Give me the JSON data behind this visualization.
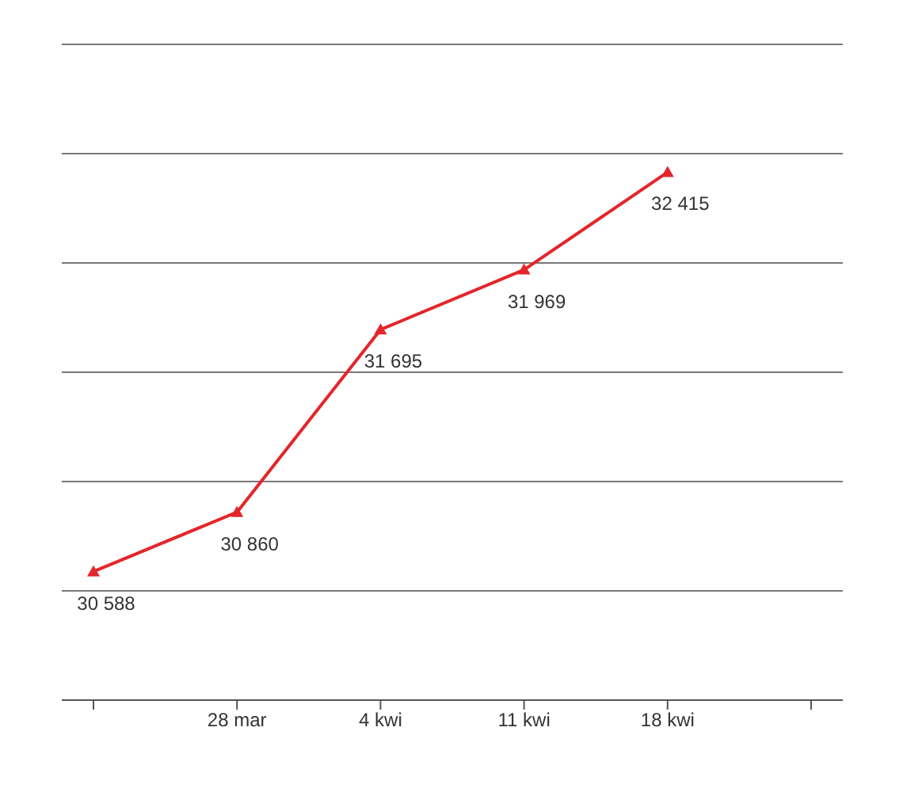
{
  "chart_data": {
    "type": "line",
    "categories": [
      null,
      "28 mar",
      "4 kwi",
      "11 kwi",
      "18 kwi",
      null
    ],
    "series": [
      {
        "color": "#e3262b",
        "values": [
          30588,
          30860,
          31695,
          31969,
          32415,
          null
        ],
        "value_labels": [
          "30 588",
          "30 860",
          "31 695",
          "31 969",
          "32 415",
          null
        ]
      }
    ],
    "ylim": [
      30000,
      33000
    ],
    "yticks": [
      {
        "value": 30000,
        "label": null
      },
      {
        "value": 30500,
        "label": null
      },
      {
        "value": 31000,
        "label": null
      },
      {
        "value": 31500,
        "label": null
      },
      {
        "value": 32000,
        "label": null
      },
      {
        "value": 32500,
        "label": null
      },
      {
        "value": 33000,
        "label": null
      }
    ],
    "grid": "y",
    "tick_labels": "x",
    "marker": "triangle",
    "line_style": "solid",
    "legend": false
  }
}
